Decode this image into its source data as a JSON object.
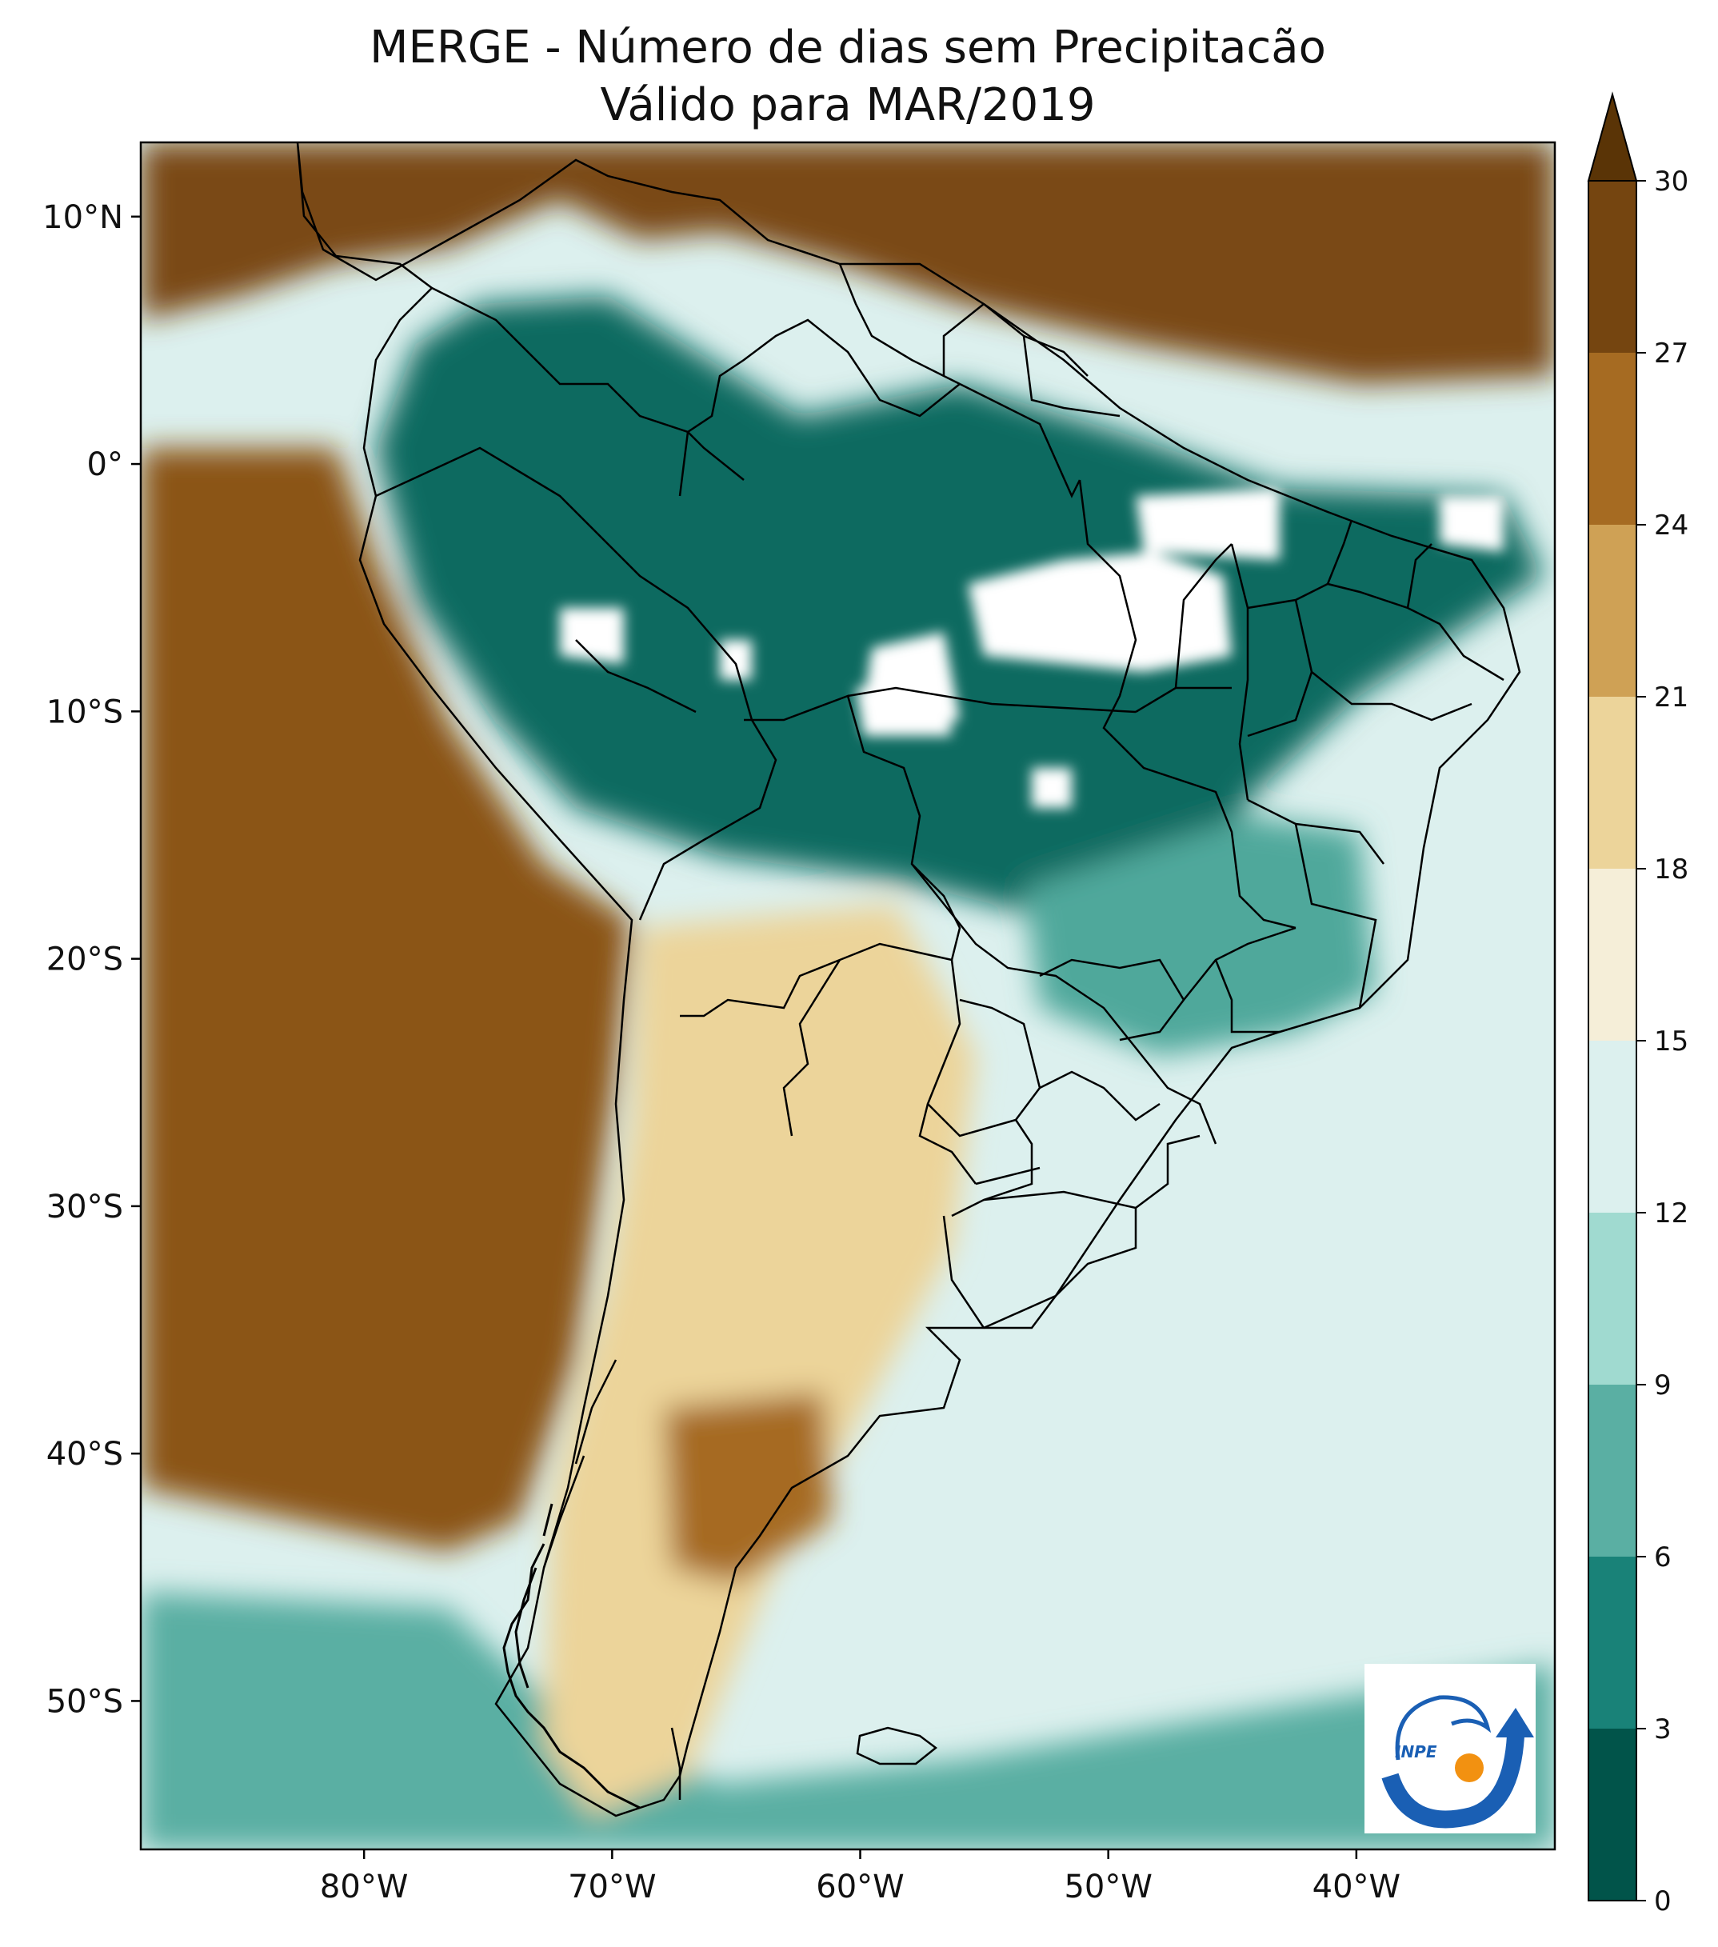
{
  "title": {
    "line1": "MERGE - Número de dias sem Precipitacão",
    "line2": "Válido para MAR/2019"
  },
  "map": {
    "longitude_range": [
      -89,
      -32
    ],
    "latitude_range": [
      -56,
      13
    ],
    "lat_ticks": [
      {
        "value": 10,
        "label": "10°N"
      },
      {
        "value": 0,
        "label": "0°"
      },
      {
        "value": -10,
        "label": "10°S"
      },
      {
        "value": -20,
        "label": "20°S"
      },
      {
        "value": -30,
        "label": "30°S"
      },
      {
        "value": -40,
        "label": "40°S"
      },
      {
        "value": -50,
        "label": "50°S"
      }
    ],
    "lon_ticks": [
      {
        "value": -80,
        "label": "80°W"
      },
      {
        "value": -70,
        "label": "70°W"
      },
      {
        "value": -60,
        "label": "60°W"
      },
      {
        "value": -50,
        "label": "50°W"
      },
      {
        "value": -40,
        "label": "40°W"
      }
    ]
  },
  "colorbar": {
    "levels": [
      0,
      3,
      6,
      9,
      12,
      15,
      18,
      21,
      24,
      27,
      30
    ],
    "labels": [
      "0",
      "3",
      "6",
      "9",
      "12",
      "15",
      "18",
      "21",
      "24",
      "27",
      "30"
    ],
    "colors": [
      "#01544a",
      "#198278",
      "#5aafa3",
      "#a0dad0",
      "#dcf0ee",
      "#f5eed8",
      "#ecd49a",
      "#cfa155",
      "#a66b22",
      "#754510"
    ],
    "extend_color": "#5a3406"
  },
  "palette": {
    "ocean_north": "#7a4a12",
    "pacific": "#8b5516",
    "atlantic": "#dcf0ee",
    "amazon": "#0f6b60",
    "amazon_light": "#4fa89b",
    "no_data": "#ffffff",
    "south": "#ecd49a",
    "patagonia_dark": "#a66b22",
    "south_ocean": "#5aafa3"
  },
  "logo": {
    "text": "INPE",
    "icon": "inpe-logo-icon",
    "blue": "#1a5fb4",
    "orange": "#f29111"
  }
}
